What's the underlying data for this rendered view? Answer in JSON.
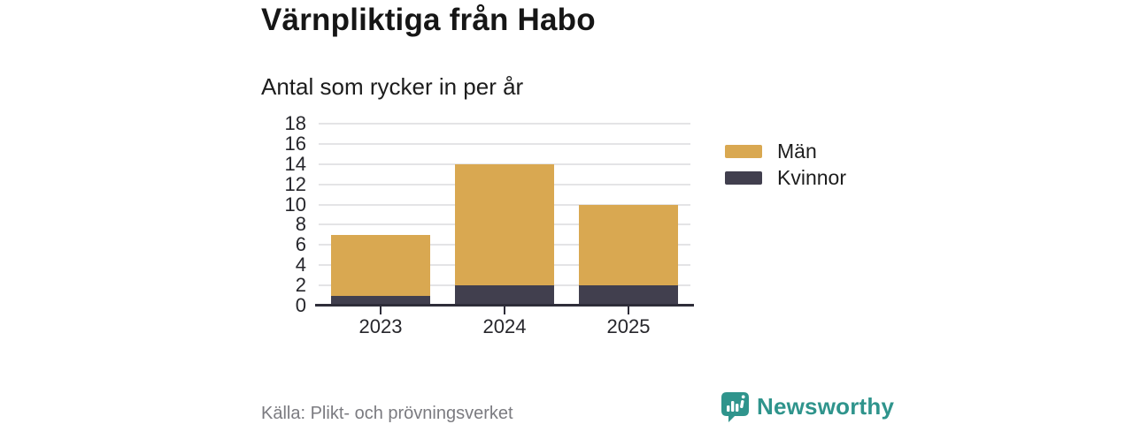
{
  "header": {
    "title": "Värnpliktiga från Habo",
    "subtitle": "Antal som rycker in per år"
  },
  "chart_data": {
    "type": "bar",
    "stacked": true,
    "title": "Värnpliktiga från Habo",
    "subtitle": "Antal som rycker in per år",
    "categories": [
      "2023",
      "2024",
      "2025"
    ],
    "series": [
      {
        "name": "Män",
        "color": "#d9a851",
        "values": [
          6,
          12,
          8
        ]
      },
      {
        "name": "Kvinnor",
        "color": "#413f4e",
        "values": [
          1,
          2,
          2
        ]
      }
    ],
    "stack_order_bottom_to_top": [
      "Kvinnor",
      "Män"
    ],
    "totals": [
      7,
      14,
      10
    ],
    "xlabel": "",
    "ylabel": "",
    "ylim": [
      0,
      18
    ],
    "yticks": [
      0,
      2,
      4,
      6,
      8,
      10,
      12,
      14,
      16,
      18
    ],
    "grid": true,
    "legend_position": "right",
    "source": "Källa: Plikt- och prövningsverket"
  },
  "legend": {
    "items": [
      {
        "label": "Män",
        "color": "#d9a851"
      },
      {
        "label": "Kvinnor",
        "color": "#413f4e"
      }
    ]
  },
  "footer": {
    "source": "Källa: Plikt- och prövningsverket",
    "brand": "Newsworthy"
  },
  "colors": {
    "men": "#d9a851",
    "women": "#413f4e",
    "axis": "#2e2d39",
    "gridline": "#e4e4e6",
    "brand_teal": "#2f948c",
    "source_text": "#7b7b80"
  }
}
